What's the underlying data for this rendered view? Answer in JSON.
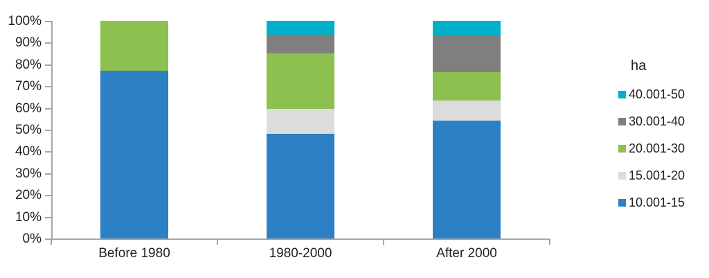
{
  "chart_data": {
    "type": "bar",
    "variant": "stacked-percent",
    "title": "",
    "categories": [
      "Before 1980",
      "1980-2000",
      "After 2000"
    ],
    "series": [
      {
        "name": "10.001-15",
        "color": "#2C80C3",
        "values": [
          77,
          48,
          54
        ]
      },
      {
        "name": "15.001-20",
        "color": "#DCDCDC",
        "values": [
          0,
          11.5,
          9.5
        ]
      },
      {
        "name": "20.001-30",
        "color": "#8CC04F",
        "values": [
          23,
          25.5,
          13
        ]
      },
      {
        "name": "30.001-40",
        "color": "#7F7F7F",
        "values": [
          0,
          8.5,
          16.5
        ]
      },
      {
        "name": "40.001-50",
        "color": "#00AFC8",
        "values": [
          0,
          6.5,
          7
        ]
      }
    ],
    "legend": {
      "title": "ha",
      "position": "right",
      "items": [
        "40.001-50",
        "30.001-40",
        "20.001-30",
        "15.001-20",
        "10.001-15"
      ]
    },
    "y_axis": {
      "min": 0,
      "max": 100,
      "tick_step": 10,
      "tick_labels": [
        "0%",
        "10%",
        "20%",
        "30%",
        "40%",
        "50%",
        "60%",
        "70%",
        "80%",
        "90%",
        "100%"
      ]
    },
    "x_axis_label": "",
    "grid": false,
    "axis_color": "#A6A6A6",
    "text_color": "#1F1F1F"
  }
}
